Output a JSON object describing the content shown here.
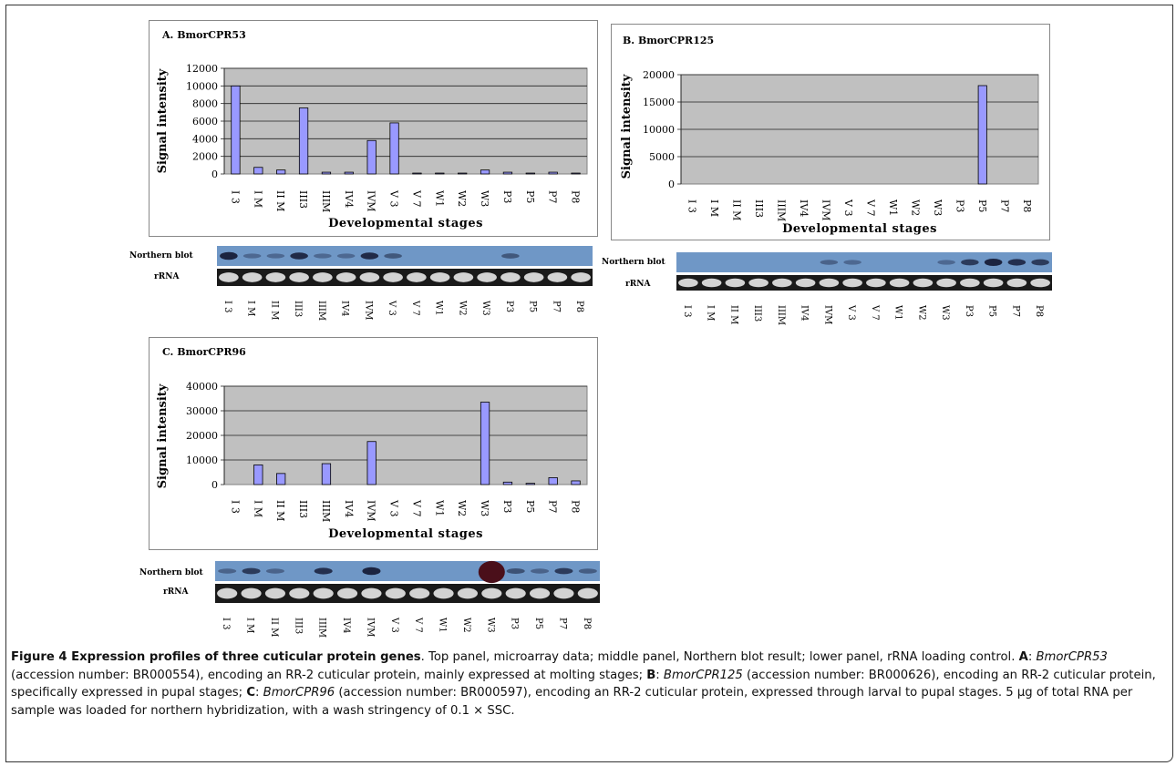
{
  "figure": {
    "caption_title": "Figure 4 Expression profiles of three cuticular protein genes",
    "caption_parts": [
      {
        "t": ". Top panel, microarray data; middle panel, Northern blot result; lower panel, rRNA loading control. ",
        "s": "n"
      },
      {
        "t": "A",
        "s": "b"
      },
      {
        "t": ": ",
        "s": "n"
      },
      {
        "t": "BmorCPR53",
        "s": "i"
      },
      {
        "t": " (accession number: BR000554), encoding an RR-2 cuticular protein, mainly expressed at molting stages; ",
        "s": "n"
      },
      {
        "t": "B",
        "s": "b"
      },
      {
        "t": ": ",
        "s": "n"
      },
      {
        "t": "BmorCPR125",
        "s": "i"
      },
      {
        "t": " (accession number: BR000626), encoding an RR-2 cuticular protein, specifically expressed in pupal stages; ",
        "s": "n"
      },
      {
        "t": "C",
        "s": "b"
      },
      {
        "t": ": ",
        "s": "n"
      },
      {
        "t": "BmorCPR96",
        "s": "i"
      },
      {
        "t": " (accession number: BR000597), encoding an RR-2 cuticular protein, expressed through larval to pupal stages. 5 μg of total RNA per sample was loaded for northern hybridization, with a wash stringency of 0.1 × SSC.",
        "s": "n"
      }
    ]
  },
  "blot_labels": {
    "northern": "Northern blot",
    "rrna": "rRNA"
  },
  "chart_data": [
    {
      "type": "bar",
      "title": "A. BmorCPR53",
      "xlabel": "Developmental stages",
      "ylabel": "Signal intensity",
      "categories": [
        "I 3",
        "I M",
        "II M",
        "III3",
        "IIIM",
        "IV4",
        "IVM",
        "V 3",
        "V 7",
        "W1",
        "W2",
        "W3",
        "P3",
        "P5",
        "P7",
        "P8"
      ],
      "values": [
        10000,
        750,
        450,
        7500,
        200,
        200,
        3800,
        5800,
        100,
        100,
        100,
        450,
        200,
        100,
        200,
        100
      ],
      "ylim": [
        0,
        12000
      ],
      "yticks": [
        "0",
        "2000",
        "4000",
        "6000",
        "8000",
        "10000",
        "12000"
      ],
      "blot_lanes": [
        "I 3",
        "I M",
        "II M",
        "III3",
        "IIIM",
        "IV4",
        "IVM",
        "V 3",
        "V 7",
        "W1",
        "W2",
        "W3",
        "P3",
        "P5",
        "P7",
        "P8"
      ],
      "northern_intensity": [
        0.9,
        0.05,
        0.05,
        0.6,
        0.05,
        0.05,
        0.6,
        0.2,
        0,
        0,
        0,
        0,
        0.2,
        0,
        0,
        0
      ],
      "bar_color": "#9999ff",
      "plot_bg": "#c0c0c0"
    },
    {
      "type": "bar",
      "title": "B. BmorCPR125",
      "xlabel": "Developmental stages",
      "ylabel": "Signal intensity",
      "categories": [
        "I 3",
        "I M",
        "II M",
        "III3",
        "IIIM",
        "IV4",
        "IVM",
        "V 3",
        "V 7",
        "W1",
        "W2",
        "W3",
        "P3",
        "P5",
        "P7",
        "P8"
      ],
      "values": [
        0,
        0,
        0,
        0,
        0,
        0,
        0,
        0,
        0,
        0,
        0,
        0,
        0,
        18000,
        0,
        0
      ],
      "ylim": [
        0,
        20000
      ],
      "yticks": [
        "0",
        "5000",
        "10000",
        "15000",
        "20000"
      ],
      "blot_lanes": [
        "I 3",
        "I M",
        "II M",
        "III3",
        "IIIM",
        "IV4",
        "IVM",
        "V 3",
        "V 7",
        "W1",
        "W2",
        "W3",
        "P3",
        "P5",
        "P7",
        "P8"
      ],
      "northern_intensity": [
        0,
        0,
        0,
        0,
        0,
        0,
        0.1,
        0.05,
        0,
        0,
        0,
        0.05,
        0.45,
        0.75,
        0.55,
        0.45
      ],
      "bar_color": "#9999ff",
      "plot_bg": "#c0c0c0"
    },
    {
      "type": "bar",
      "title": "C. BmorCPR96",
      "xlabel": "Developmental stages",
      "ylabel": "Signal intensity",
      "categories": [
        "I 3",
        "I M",
        "II M",
        "III3",
        "IIIM",
        "IV4",
        "IVM",
        "V 3",
        "V 7",
        "W1",
        "W2",
        "W3",
        "P3",
        "P5",
        "P7",
        "P8"
      ],
      "values": [
        0,
        8000,
        4500,
        0,
        8500,
        0,
        17500,
        0,
        0,
        0,
        0,
        33500,
        1000,
        500,
        2800,
        1500
      ],
      "ylim": [
        0,
        40000
      ],
      "yticks": [
        "0",
        "10000",
        "20000",
        "30000",
        "40000"
      ],
      "blot_lanes": [
        "I 3",
        "I M",
        "II M",
        "III3",
        "IIIM",
        "IV4",
        "IVM",
        "V 3",
        "V 7",
        "W1",
        "W2",
        "W3",
        "P3",
        "P5",
        "P7",
        "P8"
      ],
      "northern_intensity": [
        0.1,
        0.45,
        0.1,
        0,
        0.55,
        0,
        0.9,
        0,
        0,
        0,
        0,
        1,
        0.25,
        0.1,
        0.45,
        0.15
      ],
      "bar_color": "#9999ff",
      "plot_bg": "#c0c0c0"
    }
  ]
}
